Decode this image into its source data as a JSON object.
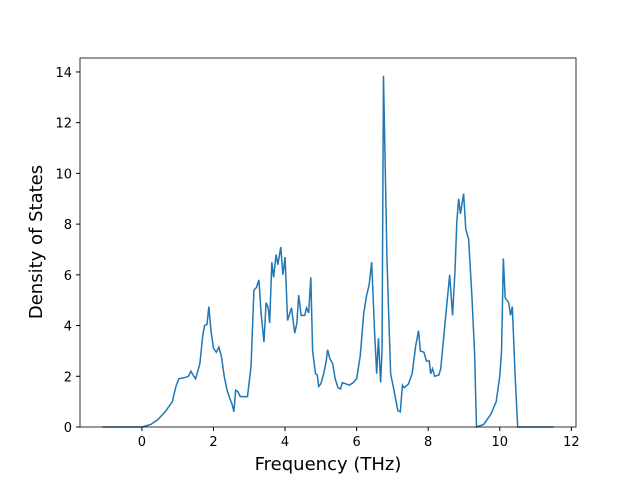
{
  "chart_data": {
    "type": "line",
    "xlabel": "Frequency (THz)",
    "ylabel": "Density of States",
    "xlim": [
      -1.73,
      12.13
    ],
    "ylim": [
      0,
      14.55
    ],
    "xticks": [
      0,
      2,
      4,
      6,
      8,
      10,
      12
    ],
    "yticks": [
      0,
      2,
      4,
      6,
      8,
      10,
      12,
      14
    ],
    "series": [
      {
        "color": "#1f77b4",
        "x": [
          -1.1,
          0,
          0.25,
          0.45,
          0.65,
          0.85,
          0.95,
          1.03,
          1.2,
          1.3,
          1.37,
          1.45,
          1.5,
          1.62,
          1.7,
          1.75,
          1.82,
          1.87,
          1.93,
          2.0,
          2.08,
          2.15,
          2.22,
          2.3,
          2.38,
          2.45,
          2.52,
          2.57,
          2.62,
          2.68,
          2.75,
          2.95,
          3.05,
          3.13,
          3.2,
          3.27,
          3.33,
          3.41,
          3.47,
          3.53,
          3.57,
          3.63,
          3.68,
          3.75,
          3.8,
          3.88,
          3.94,
          4.0,
          4.07,
          4.18,
          4.27,
          4.33,
          4.38,
          4.45,
          4.55,
          4.6,
          4.66,
          4.72,
          4.77,
          4.85,
          4.9,
          4.94,
          5.0,
          5.08,
          5.15,
          5.19,
          5.25,
          5.33,
          5.4,
          5.48,
          5.55,
          5.6,
          5.8,
          5.9,
          6.0,
          6.1,
          6.2,
          6.28,
          6.35,
          6.42,
          6.5,
          6.56,
          6.61,
          6.67,
          6.71,
          6.75,
          6.85,
          6.95,
          7.05,
          7.15,
          7.22,
          7.28,
          7.33,
          7.45,
          7.55,
          7.65,
          7.73,
          7.78,
          7.88,
          7.95,
          8.03,
          8.07,
          8.12,
          8.18,
          8.3,
          8.35,
          8.45,
          8.6,
          8.68,
          8.75,
          8.8,
          8.85,
          8.9,
          8.99,
          9.05,
          9.13,
          9.22,
          9.3,
          9.33,
          9.35,
          9.55,
          9.75,
          9.9,
          10.0,
          10.05,
          10.1,
          10.15,
          10.25,
          10.3,
          10.35,
          10.43,
          10.5,
          11.5
        ],
        "values": [
          0,
          0,
          0.1,
          0.3,
          0.6,
          1.0,
          1.6,
          1.9,
          1.95,
          2.0,
          2.2,
          2.0,
          1.9,
          2.5,
          3.6,
          4.0,
          4.05,
          4.75,
          3.8,
          3.1,
          2.95,
          3.15,
          2.8,
          2.0,
          1.45,
          1.15,
          0.9,
          0.6,
          1.45,
          1.4,
          1.2,
          1.2,
          2.4,
          5.4,
          5.5,
          5.8,
          4.5,
          3.35,
          4.9,
          4.7,
          4.1,
          6.5,
          5.9,
          6.8,
          6.4,
          7.1,
          6.0,
          6.7,
          4.2,
          4.7,
          3.7,
          4.1,
          5.2,
          4.4,
          4.4,
          4.7,
          4.5,
          5.9,
          3.0,
          2.1,
          2.05,
          1.6,
          1.7,
          2.1,
          2.6,
          3.05,
          2.7,
          2.5,
          1.9,
          1.55,
          1.5,
          1.75,
          1.65,
          1.75,
          1.9,
          2.8,
          4.5,
          5.2,
          5.6,
          6.5,
          3.8,
          2.1,
          3.5,
          1.75,
          3.0,
          13.85,
          6.5,
          2.1,
          1.4,
          0.65,
          0.6,
          1.65,
          1.55,
          1.7,
          2.1,
          3.2,
          3.8,
          3.0,
          2.95,
          2.6,
          2.6,
          2.1,
          2.3,
          2.0,
          2.05,
          2.3,
          3.8,
          6.0,
          4.4,
          6.2,
          8.1,
          9.0,
          8.4,
          9.2,
          7.8,
          7.4,
          5.2,
          2.8,
          1.0,
          0,
          0.1,
          0.5,
          1.0,
          2.0,
          3.0,
          6.65,
          5.1,
          4.9,
          4.4,
          4.75,
          2.0,
          0,
          0
        ]
      }
    ]
  }
}
